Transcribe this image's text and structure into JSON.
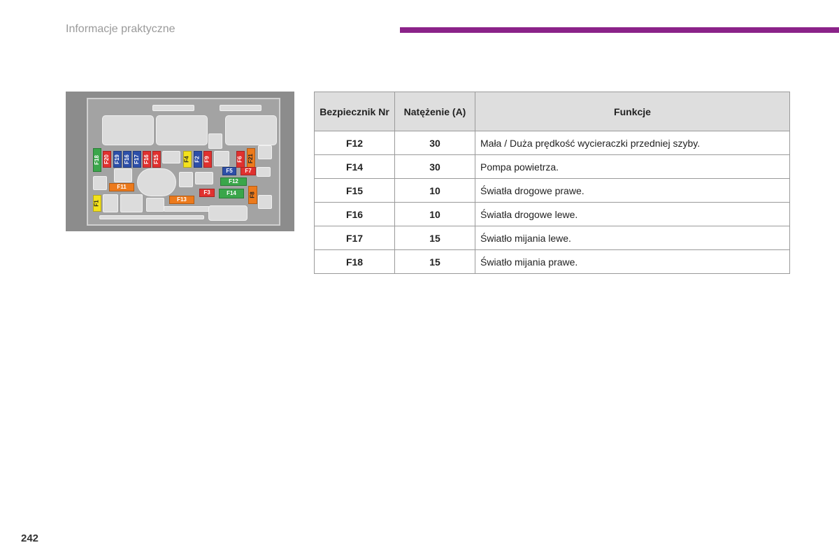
{
  "header": {
    "section_title": "Informacje praktyczne",
    "accent_color": "#8b2389"
  },
  "footer": {
    "page_number": "242"
  },
  "diagram": {
    "fuse_labels": {
      "F18": "F18",
      "F20": "F20",
      "F19": "F19",
      "F16": "F16",
      "F17": "F17",
      "F15": "F15",
      "F4": "F4",
      "F2": "F2",
      "F9": "F9",
      "F6": "F6",
      "F21": "F21",
      "F5": "F5",
      "F7": "F7",
      "F12": "F12",
      "F11": "F11",
      "F3": "F3",
      "F14": "F14",
      "F8": "F8",
      "F1": "F1",
      "F13": "F13"
    },
    "colors": {
      "green": "#3aa64a",
      "red": "#e0312f",
      "blue": "#2d4fa8",
      "yellow": "#f4e21c",
      "orange": "#ec7a1c"
    }
  },
  "table": {
    "headers": {
      "col1": "Bezpiecznik Nr",
      "col2": "Natężenie (A)",
      "col3": "Funkcje"
    },
    "rows": [
      {
        "fuse": "F12",
        "amp": "30",
        "func": "Mała / Duża prędkość wycieraczki przedniej szyby."
      },
      {
        "fuse": "F14",
        "amp": "30",
        "func": "Pompa powietrza."
      },
      {
        "fuse": "F15",
        "amp": "10",
        "func": "Światła drogowe prawe."
      },
      {
        "fuse": "F16",
        "amp": "10",
        "func": "Światła drogowe lewe."
      },
      {
        "fuse": "F17",
        "amp": "15",
        "func": "Światło mijania lewe."
      },
      {
        "fuse": "F18",
        "amp": "15",
        "func": "Światło mijania prawe."
      }
    ]
  }
}
